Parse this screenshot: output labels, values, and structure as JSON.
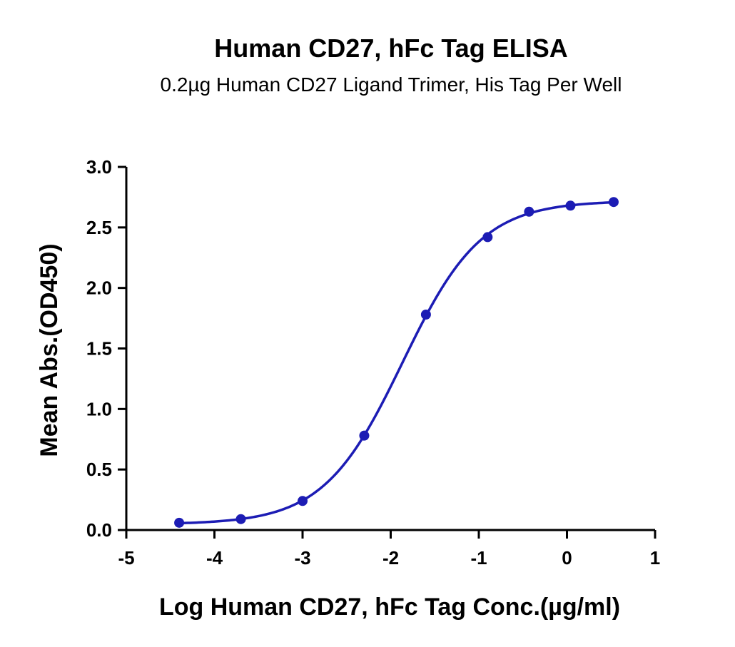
{
  "chart_data": {
    "type": "scatter",
    "title": "Human CD27, hFc Tag ELISA",
    "subtitle": "0.2µg Human CD27 Ligand Trimer, His Tag Per Well",
    "xlabel": "Log Human CD27, hFc Tag Conc.(µg/ml)",
    "ylabel": "Mean Abs.(OD450)",
    "xlim": [
      -5,
      1
    ],
    "ylim": [
      0,
      3
    ],
    "x_ticks": [
      "-5",
      "-4",
      "-3",
      "-2",
      "-1",
      "0",
      "1"
    ],
    "y_ticks": [
      "0.0",
      "0.5",
      "1.0",
      "1.5",
      "2.0",
      "2.5",
      "3.0"
    ],
    "grid": false,
    "series": [
      {
        "x": [
          -4.4,
          -3.7,
          -3.0,
          -2.3,
          -1.6,
          -0.9,
          -0.43,
          0.04,
          0.53
        ],
        "y": [
          0.06,
          0.09,
          0.24,
          0.78,
          1.78,
          2.42,
          2.63,
          2.68,
          2.71
        ],
        "color": "#1c1cb4",
        "fit": "sigmoidal"
      }
    ]
  }
}
